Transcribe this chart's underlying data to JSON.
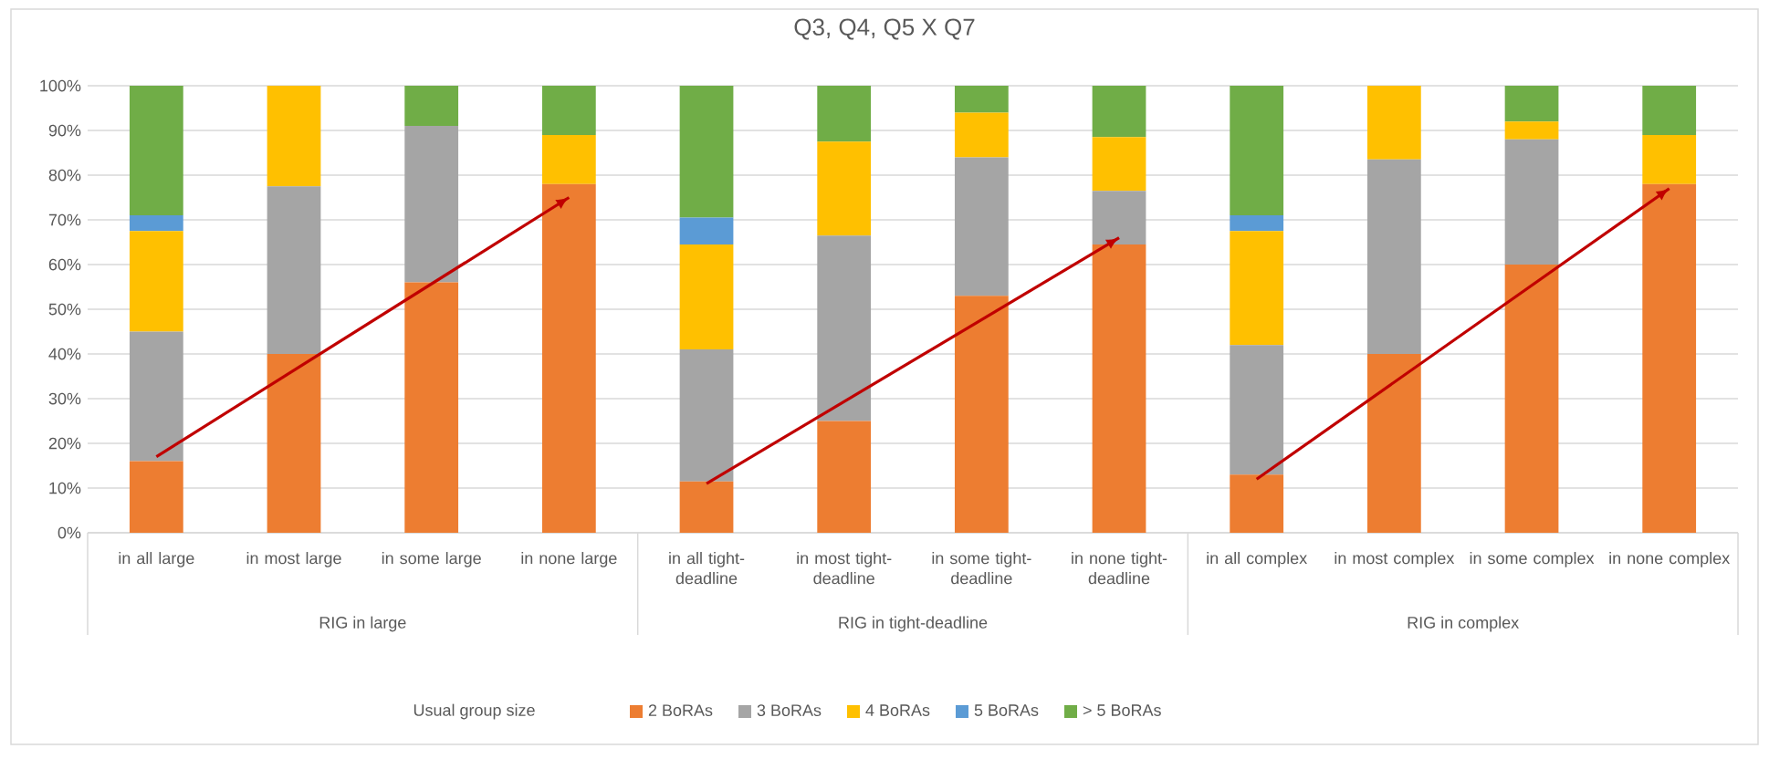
{
  "chart_data": {
    "type": "bar",
    "stacked": true,
    "title": "Q3, Q4, Q5 X Q7",
    "legend_title": "Usual group size",
    "legend": "bottom",
    "grid": "y",
    "categories": [
      "in all large",
      "in most large",
      "in some large",
      "in none large",
      "in all tight-deadline",
      "in most tight-deadline",
      "in some tight-deadline",
      "in none tight-deadline",
      "in all complex",
      "in most complex",
      "in some complex",
      "in none complex"
    ],
    "ylim": [
      0,
      100
    ],
    "yticks": [
      {
        "value": 0,
        "label": "0%"
      },
      {
        "value": 10,
        "label": "10%"
      },
      {
        "value": 20,
        "label": "20%"
      },
      {
        "value": 30,
        "label": "30%"
      },
      {
        "value": 40,
        "label": "40%"
      },
      {
        "value": 50,
        "label": "50%"
      },
      {
        "value": 60,
        "label": "60%"
      },
      {
        "value": 70,
        "label": "70%"
      },
      {
        "value": 80,
        "label": "80%"
      },
      {
        "value": 90,
        "label": "90%"
      },
      {
        "value": 100,
        "label": "100%"
      }
    ],
    "annotations": [
      "RIG in large",
      "RIG in tight-deadline",
      "RIG in complex"
    ],
    "series": [
      {
        "name": "2 BoRAs",
        "color": "#ed7d31",
        "values": [
          16,
          40,
          56,
          78,
          11.5,
          25,
          53,
          64.5,
          13,
          40,
          60,
          78
        ]
      },
      {
        "name": "3 BoRAs",
        "color": "#a5a5a5",
        "values": [
          29,
          37.5,
          35,
          0,
          29.5,
          41.5,
          31,
          12,
          29,
          43.5,
          28,
          0
        ]
      },
      {
        "name": "4 BoRAs",
        "color": "#ffc000",
        "values": [
          22.5,
          22.5,
          0,
          11,
          23.5,
          21,
          10,
          12,
          25.5,
          16.5,
          4,
          11
        ]
      },
      {
        "name": "5 BoRAs",
        "color": "#5b9bd5",
        "values": [
          3.5,
          0,
          0,
          0,
          6,
          0,
          0,
          0,
          3.5,
          0,
          0,
          0
        ]
      },
      {
        "name": "> 5 BoRAs",
        "color": "#70ad47",
        "values": [
          29,
          0,
          9,
          11,
          29.5,
          12.5,
          6,
          11.5,
          29,
          0,
          8,
          11
        ]
      },
      {
        "type": "line",
        "color": "#c00000",
        "x": [
          "in all large",
          "in none large"
        ],
        "values": [
          17,
          75
        ]
      },
      {
        "type": "line",
        "color": "#c00000",
        "x": [
          "in all tight-deadline",
          "in none tight-deadline"
        ],
        "values": [
          11,
          66
        ]
      },
      {
        "type": "line",
        "color": "#c00000",
        "x": [
          "in all complex",
          "in none complex"
        ],
        "values": [
          12,
          77
        ]
      }
    ]
  }
}
